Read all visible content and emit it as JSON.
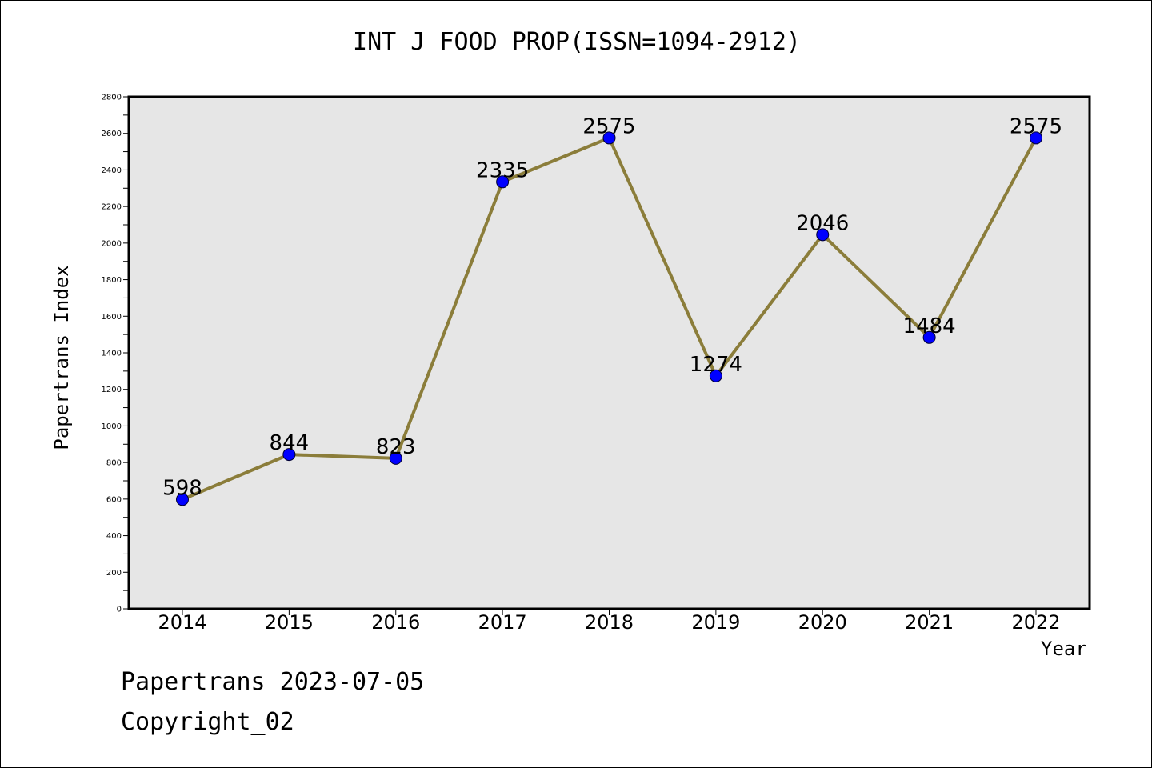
{
  "chart_data": {
    "type": "line",
    "title": "INT J FOOD PROP(ISSN=1094-2912)",
    "xlabel": "Year",
    "ylabel": "Papertrans Index",
    "categories": [
      "2014",
      "2015",
      "2016",
      "2017",
      "2018",
      "2019",
      "2020",
      "2021",
      "2022"
    ],
    "series": [
      {
        "values": [
          598,
          844,
          823,
          2335,
          2575,
          1274,
          2046,
          1484,
          2575
        ],
        "line_color": "#8b7d3a",
        "marker_color": "#0000ff"
      }
    ],
    "ylim": [
      0,
      2800
    ],
    "yticks": [
      0,
      200,
      400,
      600,
      800,
      1000,
      1200,
      1400,
      1600,
      1800,
      2000,
      2200,
      2400,
      2600,
      2800
    ],
    "grid": false,
    "plot_background": "#e6e6e6"
  },
  "footer": {
    "line1": "Papertrans 2023-07-05",
    "line2": "Copyright_02"
  }
}
